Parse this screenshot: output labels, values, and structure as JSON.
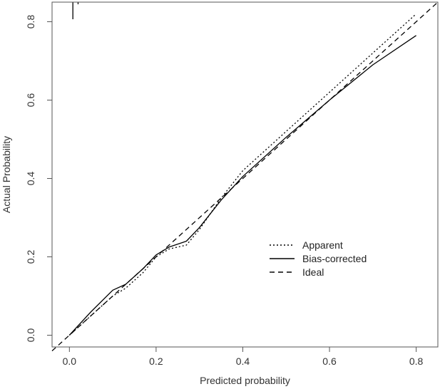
{
  "chart_data": {
    "type": "line",
    "xlabel": "Predicted probability",
    "ylabel": "Actual Probability",
    "xlim": [
      -0.04,
      0.85
    ],
    "ylim": [
      -0.03,
      0.85
    ],
    "x_ticks": [
      0.0,
      0.2,
      0.4,
      0.6,
      0.8
    ],
    "y_ticks": [
      0.0,
      0.2,
      0.4,
      0.6,
      0.8
    ],
    "x_tick_labels": [
      "0.0",
      "0.2",
      "0.4",
      "0.6",
      "0.8"
    ],
    "y_tick_labels": [
      "0.0",
      "0.2",
      "0.4",
      "0.6",
      "0.8"
    ],
    "grid": false,
    "legend_position": "lower-right",
    "rug_x": [
      0.008,
      0.02
    ],
    "series": [
      {
        "name": "Apparent",
        "style": "dotted",
        "color": "#000000",
        "x": [
          0.0,
          0.05,
          0.1,
          0.13,
          0.17,
          0.2,
          0.23,
          0.27,
          0.3,
          0.35,
          0.4,
          0.5,
          0.6,
          0.7,
          0.8
        ],
        "y": [
          0.0,
          0.05,
          0.1,
          0.12,
          0.16,
          0.2,
          0.22,
          0.23,
          0.27,
          0.35,
          0.42,
          0.52,
          0.62,
          0.72,
          0.82
        ]
      },
      {
        "name": "Bias-corrected",
        "style": "solid",
        "color": "#000000",
        "x": [
          0.0,
          0.05,
          0.1,
          0.13,
          0.17,
          0.2,
          0.23,
          0.27,
          0.3,
          0.35,
          0.4,
          0.5,
          0.6,
          0.7,
          0.8
        ],
        "y": [
          0.0,
          0.06,
          0.115,
          0.13,
          0.17,
          0.205,
          0.225,
          0.24,
          0.275,
          0.345,
          0.405,
          0.505,
          0.6,
          0.69,
          0.765
        ]
      },
      {
        "name": "Ideal",
        "style": "dashed",
        "color": "#000000",
        "x": [
          -0.04,
          0.85
        ],
        "y": [
          -0.04,
          0.85
        ]
      }
    ]
  }
}
